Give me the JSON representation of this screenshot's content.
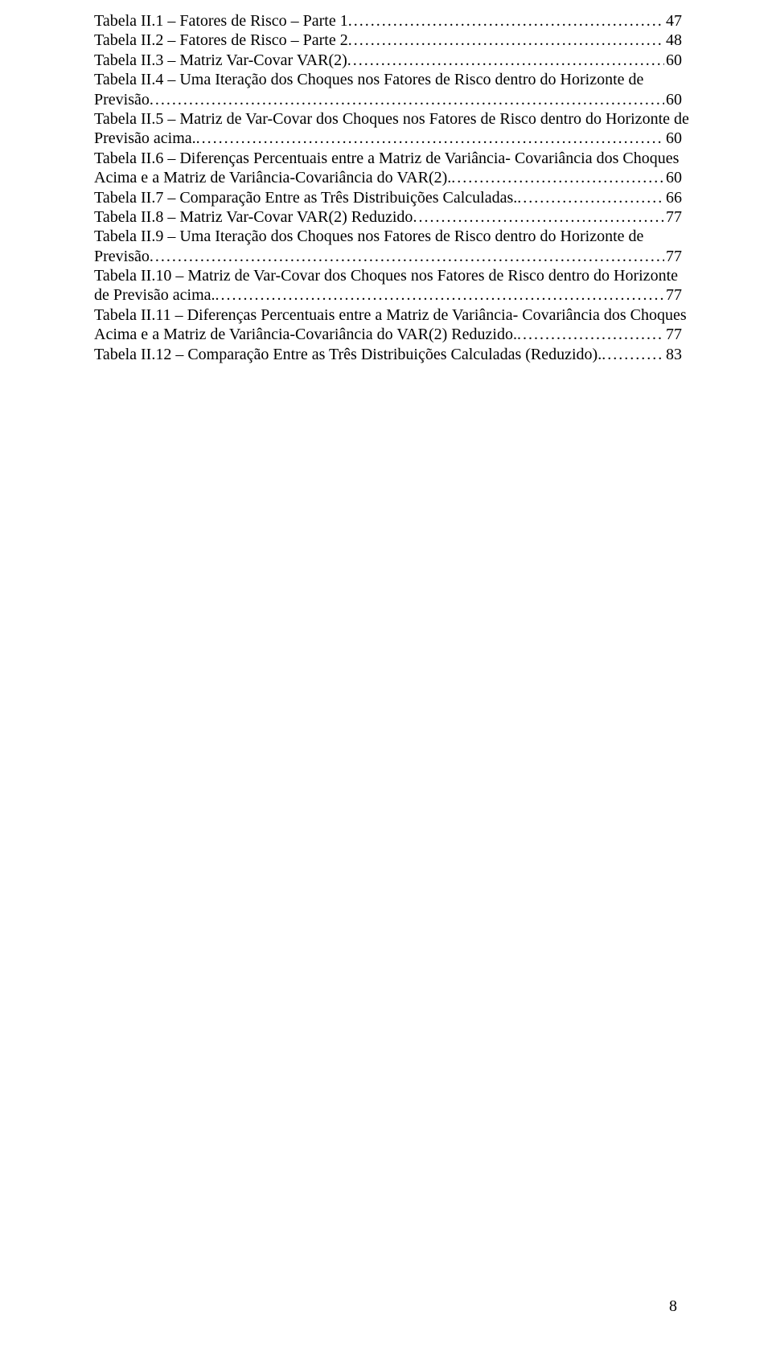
{
  "page_number": "8",
  "entries": [
    {
      "lines": [
        "Tabela II.1 – Fatores de Risco – Parte 1"
      ],
      "page": "47"
    },
    {
      "lines": [
        "Tabela II.2 – Fatores de Risco – Parte 2"
      ],
      "page": "48"
    },
    {
      "lines": [
        "Tabela II.3 – Matriz Var-Covar VAR(2)"
      ],
      "page": "60"
    },
    {
      "lines": [
        "Tabela II.4 – Uma Iteração dos Choques nos Fatores de Risco dentro do Horizonte de",
        "Previsão"
      ],
      "page": "60"
    },
    {
      "lines": [
        "Tabela II.5 – Matriz de Var-Covar dos Choques nos Fatores de Risco dentro do Horizonte de",
        "Previsão acima. "
      ],
      "page": "60"
    },
    {
      "lines": [
        "Tabela II.6 – Diferenças Percentuais entre a Matriz de Variância- Covariância dos Choques",
        "Acima e a Matriz de Variância-Covariância do VAR(2)."
      ],
      "page": "60"
    },
    {
      "lines": [
        "Tabela II.7 – Comparação Entre as Três Distribuições Calculadas."
      ],
      "page": "66"
    },
    {
      "lines": [
        "Tabela II.8 – Matriz Var-Covar VAR(2) Reduzido"
      ],
      "page": "77"
    },
    {
      "lines": [
        "Tabela II.9 – Uma Iteração dos Choques nos Fatores de Risco dentro do Horizonte de",
        "Previsão"
      ],
      "page": "77"
    },
    {
      "lines": [
        "Tabela II.10 – Matriz de Var-Covar dos Choques nos Fatores de Risco dentro do Horizonte",
        "de Previsão acima. "
      ],
      "page": "77"
    },
    {
      "lines": [
        "Tabela II.11 – Diferenças Percentuais entre a Matriz de Variância- Covariância dos Choques",
        "Acima e a Matriz de Variância-Covariância do VAR(2) Reduzido. "
      ],
      "page": "77"
    },
    {
      "lines": [
        "Tabela II.12 – Comparação Entre as Três Distribuições Calculadas (Reduzido)."
      ],
      "page": "83"
    }
  ]
}
